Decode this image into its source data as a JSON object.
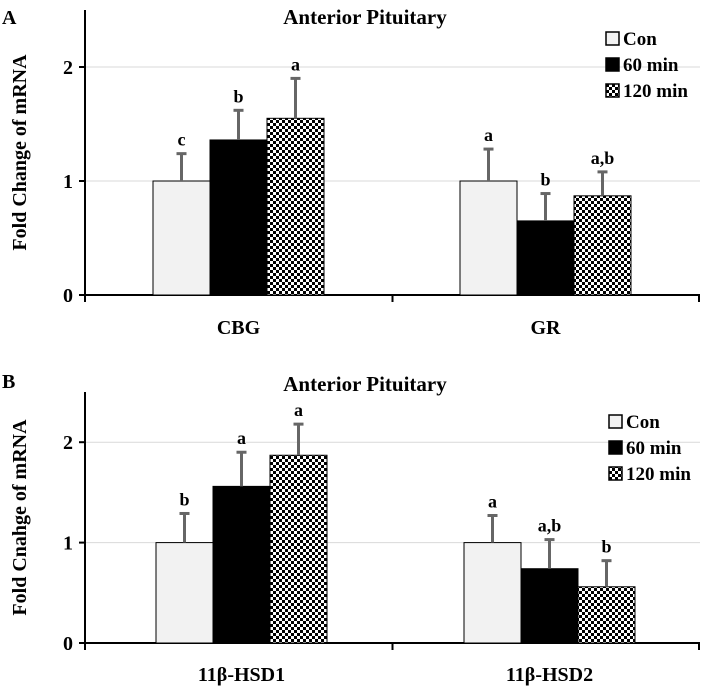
{
  "chart_data": [
    {
      "type": "bar",
      "panel_label": "A",
      "title": "Anterior Pituitary",
      "ylabel": "Fold Change of mRNA",
      "xlabel": "",
      "ylim": [
        0,
        2.5
      ],
      "yticks": [
        "0",
        "1",
        "2"
      ],
      "grid": true,
      "legend_position": "top-right",
      "categories": [
        "CBG",
        "GR"
      ],
      "series": [
        {
          "name": "Con",
          "pattern": "light",
          "values": [
            1.0,
            1.0
          ],
          "errors": [
            0.24,
            0.28
          ],
          "annotations": [
            "c",
            "a"
          ]
        },
        {
          "name": "60 min",
          "pattern": "solid",
          "values": [
            1.36,
            0.65
          ],
          "errors": [
            0.26,
            0.24
          ],
          "annotations": [
            "b",
            "b"
          ]
        },
        {
          "name": "120 min",
          "pattern": "checker",
          "values": [
            1.55,
            0.87
          ],
          "errors": [
            0.35,
            0.21
          ],
          "annotations": [
            "a",
            "a,b"
          ]
        }
      ]
    },
    {
      "type": "bar",
      "panel_label": "B",
      "title": "Anterior Pituitary",
      "ylabel": "Fold Cnahge of mRNA",
      "xlabel": "",
      "ylim": [
        0,
        2.5
      ],
      "yticks": [
        "0",
        "1",
        "2"
      ],
      "grid": true,
      "legend_position": "top-right",
      "categories": [
        "11β-HSD1",
        "11β-HSD2"
      ],
      "series": [
        {
          "name": "Con",
          "pattern": "light",
          "values": [
            1.0,
            1.0
          ],
          "errors": [
            0.29,
            0.27
          ],
          "annotations": [
            "b",
            "a"
          ]
        },
        {
          "name": "60 min",
          "pattern": "solid",
          "values": [
            1.56,
            0.74
          ],
          "errors": [
            0.34,
            0.29
          ],
          "annotations": [
            "a",
            "a,b"
          ]
        },
        {
          "name": "120 min",
          "pattern": "checker",
          "values": [
            1.87,
            0.56
          ],
          "errors": [
            0.31,
            0.26
          ],
          "annotations": [
            "a",
            "b"
          ]
        }
      ]
    }
  ],
  "colors": {
    "con_fill": "#f2f2f2",
    "min60_fill": "#000000",
    "axis": "#000000",
    "grid": "#d9d9d9",
    "error_bar": "#666666"
  }
}
